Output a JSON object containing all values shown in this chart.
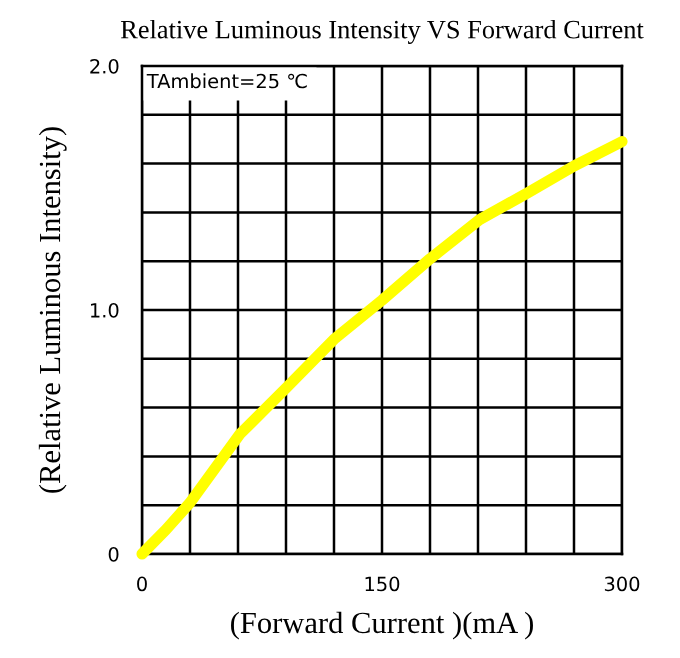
{
  "chart_data": {
    "type": "line",
    "title": "Relative Luminous Intensity VS Forward Current",
    "xlabel": "(Forward Current )(mA )",
    "ylabel": "(Relative Luminous Intensity)",
    "annotations": [
      "TAmbient=25 ℃"
    ],
    "x": [
      0,
      15,
      30,
      61,
      90,
      120,
      150,
      180,
      211,
      241,
      270,
      300
    ],
    "series": [
      {
        "color": "#ffff00",
        "values": [
          0,
          0.1,
          0.21,
          0.49,
          0.68,
          0.88,
          1.04,
          1.21,
          1.37,
          1.48,
          1.59,
          1.69
        ]
      }
    ],
    "xlim": [
      0,
      300
    ],
    "ylim": [
      0,
      2.0
    ],
    "xticks": [
      0,
      {
        "value": 30,
        "label": null
      },
      {
        "value": 60,
        "label": null
      },
      {
        "value": 90,
        "label": null
      },
      {
        "value": 120,
        "label": null
      },
      150,
      {
        "value": 180,
        "label": null
      },
      {
        "value": 210,
        "label": null
      },
      {
        "value": 240,
        "label": null
      },
      {
        "value": 270,
        "label": null
      },
      300
    ],
    "yticks": [
      0,
      {
        "value": 0.2,
        "label": null
      },
      {
        "value": 0.4,
        "label": null
      },
      {
        "value": 0.6,
        "label": null
      },
      {
        "value": 0.8,
        "label": null
      },
      {
        "value": 1,
        "label": "1.0"
      },
      {
        "value": 1.2,
        "label": null
      },
      {
        "value": 1.4,
        "label": null
      },
      {
        "value": 1.6,
        "label": null
      },
      {
        "value": 1.8,
        "label": null
      },
      {
        "value": 2,
        "label": "2.0"
      }
    ],
    "grid": true,
    "marker": "none",
    "line_style": "solid",
    "legend": false
  }
}
